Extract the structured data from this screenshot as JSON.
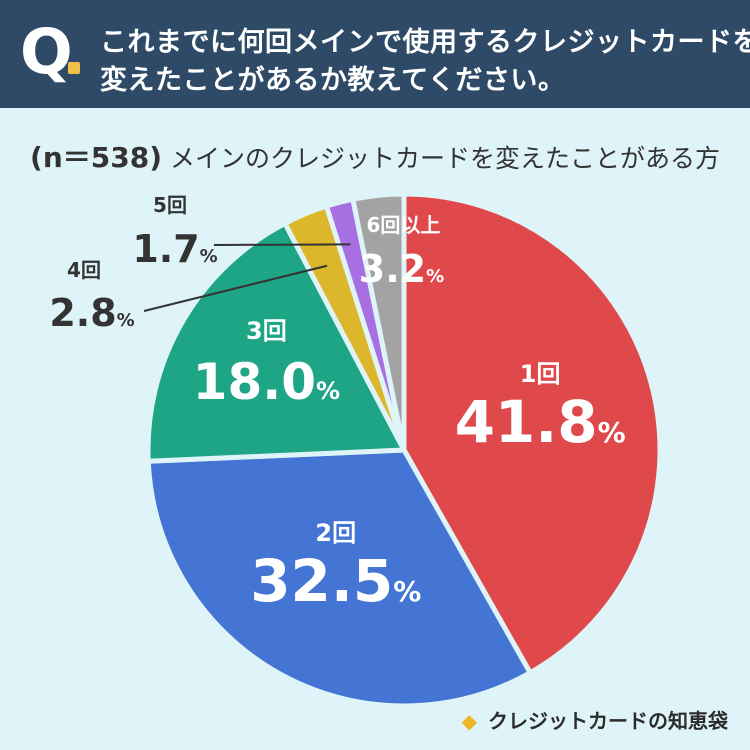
{
  "header": {
    "q_mark": "Q",
    "line1": "これまでに何回メインで使用するクレジットカードを",
    "line2": "変えたことがあるか教えてください。"
  },
  "subtitle": {
    "n": "(n＝538)",
    "text": "メインのクレジットカードを変えたことがある方"
  },
  "chart_data": {
    "type": "pie",
    "percent_suffix": "%",
    "slices": [
      {
        "label": "1回",
        "value": 41.8,
        "value_text": "41.8",
        "color": "#e0494b"
      },
      {
        "label": "2回",
        "value": 32.5,
        "value_text": "32.5",
        "color": "#4475d4"
      },
      {
        "label": "3回",
        "value": 18.0,
        "value_text": "18.0",
        "color": "#1ea585"
      },
      {
        "label": "4回",
        "value": 2.8,
        "value_text": "2.8",
        "color": "#ddb72b"
      },
      {
        "label": "5回",
        "value": 1.7,
        "value_text": "1.7",
        "color": "#a76fe2"
      },
      {
        "label": "6回以上",
        "value": 3.2,
        "value_text": "3.2",
        "color": "#a3a3a3"
      }
    ]
  },
  "brand": {
    "icon": "lightbulb-diamond-icon",
    "text": "クレジットカードの知恵袋"
  }
}
